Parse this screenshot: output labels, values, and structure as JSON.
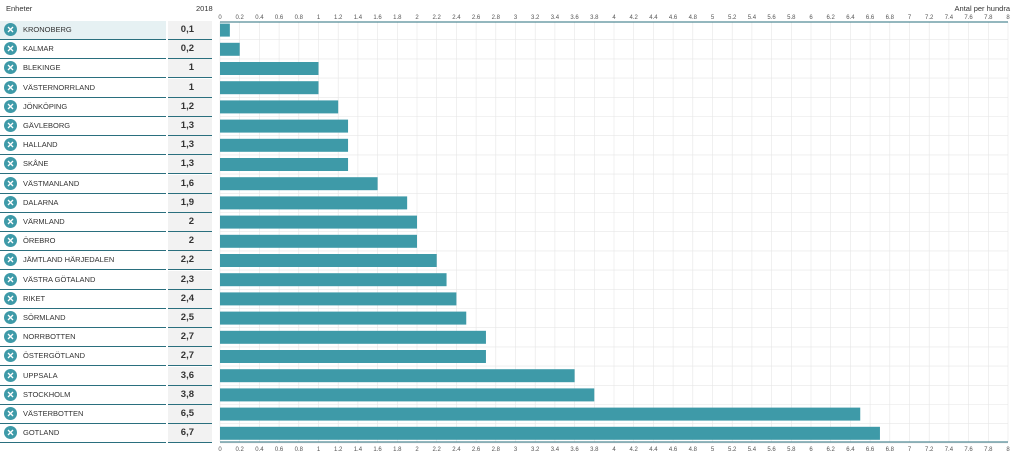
{
  "header": {
    "units_label": "Enheter",
    "year_label": "2018",
    "unit_label": "Antal per hundra"
  },
  "icons": {
    "remove": "close-icon"
  },
  "colors": {
    "bar": "#3e9aa8",
    "close_button": "#3e9aa8",
    "axis": "#2a6f7e",
    "grid": "#e6e6e6"
  },
  "rows": [
    {
      "name": "KRONOBERG",
      "value": "0,1"
    },
    {
      "name": "KALMAR",
      "value": "0,2"
    },
    {
      "name": "BLEKINGE",
      "value": "1"
    },
    {
      "name": "VÄSTERNORRLAND",
      "value": "1"
    },
    {
      "name": "JÖNKÖPING",
      "value": "1,2"
    },
    {
      "name": "GÄVLEBORG",
      "value": "1,3"
    },
    {
      "name": "HALLAND",
      "value": "1,3"
    },
    {
      "name": "SKÅNE",
      "value": "1,3"
    },
    {
      "name": "VÄSTMANLAND",
      "value": "1,6"
    },
    {
      "name": "DALARNA",
      "value": "1,9"
    },
    {
      "name": "VÄRMLAND",
      "value": "2"
    },
    {
      "name": "ÖREBRO",
      "value": "2"
    },
    {
      "name": "JÄMTLAND HÄRJEDALEN",
      "value": "2,2"
    },
    {
      "name": "VÄSTRA GÖTALAND",
      "value": "2,3"
    },
    {
      "name": "RIKET",
      "value": "2,4"
    },
    {
      "name": "SÖRMLAND",
      "value": "2,5"
    },
    {
      "name": "NORRBOTTEN",
      "value": "2,7"
    },
    {
      "name": "ÖSTERGÖTLAND",
      "value": "2,7"
    },
    {
      "name": "UPPSALA",
      "value": "3,6"
    },
    {
      "name": "STOCKHOLM",
      "value": "3,8"
    },
    {
      "name": "VÄSTERBOTTEN",
      "value": "6,5"
    },
    {
      "name": "GOTLAND",
      "value": "6,7"
    }
  ],
  "chart_data": {
    "type": "bar",
    "orientation": "horizontal",
    "categories": [
      "KRONOBERG",
      "KALMAR",
      "BLEKINGE",
      "VÄSTERNORRLAND",
      "JÖNKÖPING",
      "GÄVLEBORG",
      "HALLAND",
      "SKÅNE",
      "VÄSTMANLAND",
      "DALARNA",
      "VÄRMLAND",
      "ÖREBRO",
      "JÄMTLAND HÄRJEDALEN",
      "VÄSTRA GÖTALAND",
      "RIKET",
      "SÖRMLAND",
      "NORRBOTTEN",
      "ÖSTERGÖTLAND",
      "UPPSALA",
      "STOCKHOLM",
      "VÄSTERBOTTEN",
      "GOTLAND"
    ],
    "values": [
      0.1,
      0.2,
      1,
      1,
      1.2,
      1.3,
      1.3,
      1.3,
      1.6,
      1.9,
      2,
      2,
      2.2,
      2.3,
      2.4,
      2.5,
      2.7,
      2.7,
      3.6,
      3.8,
      6.5,
      6.7
    ],
    "xlim": [
      0,
      8
    ],
    "xticks": [
      "0",
      "0.2",
      "0.4",
      "0.6",
      "0.8",
      "1",
      "1.2",
      "1.4",
      "1.6",
      "1.8",
      "2",
      "2.2",
      "2.4",
      "2.6",
      "2.8",
      "3",
      "3.2",
      "3.4",
      "3.6",
      "3.8",
      "4",
      "4.2",
      "4.4",
      "4.6",
      "4.8",
      "5",
      "5.2",
      "5.4",
      "5.6",
      "5.8",
      "6",
      "6.2",
      "6.4",
      "6.6",
      "6.8",
      "7",
      "7.2",
      "7.4",
      "7.6",
      "7.8",
      "8"
    ],
    "xlabel": "Antal per hundra",
    "grid": true,
    "tick_labels_top": true,
    "tick_labels_bottom": true
  }
}
